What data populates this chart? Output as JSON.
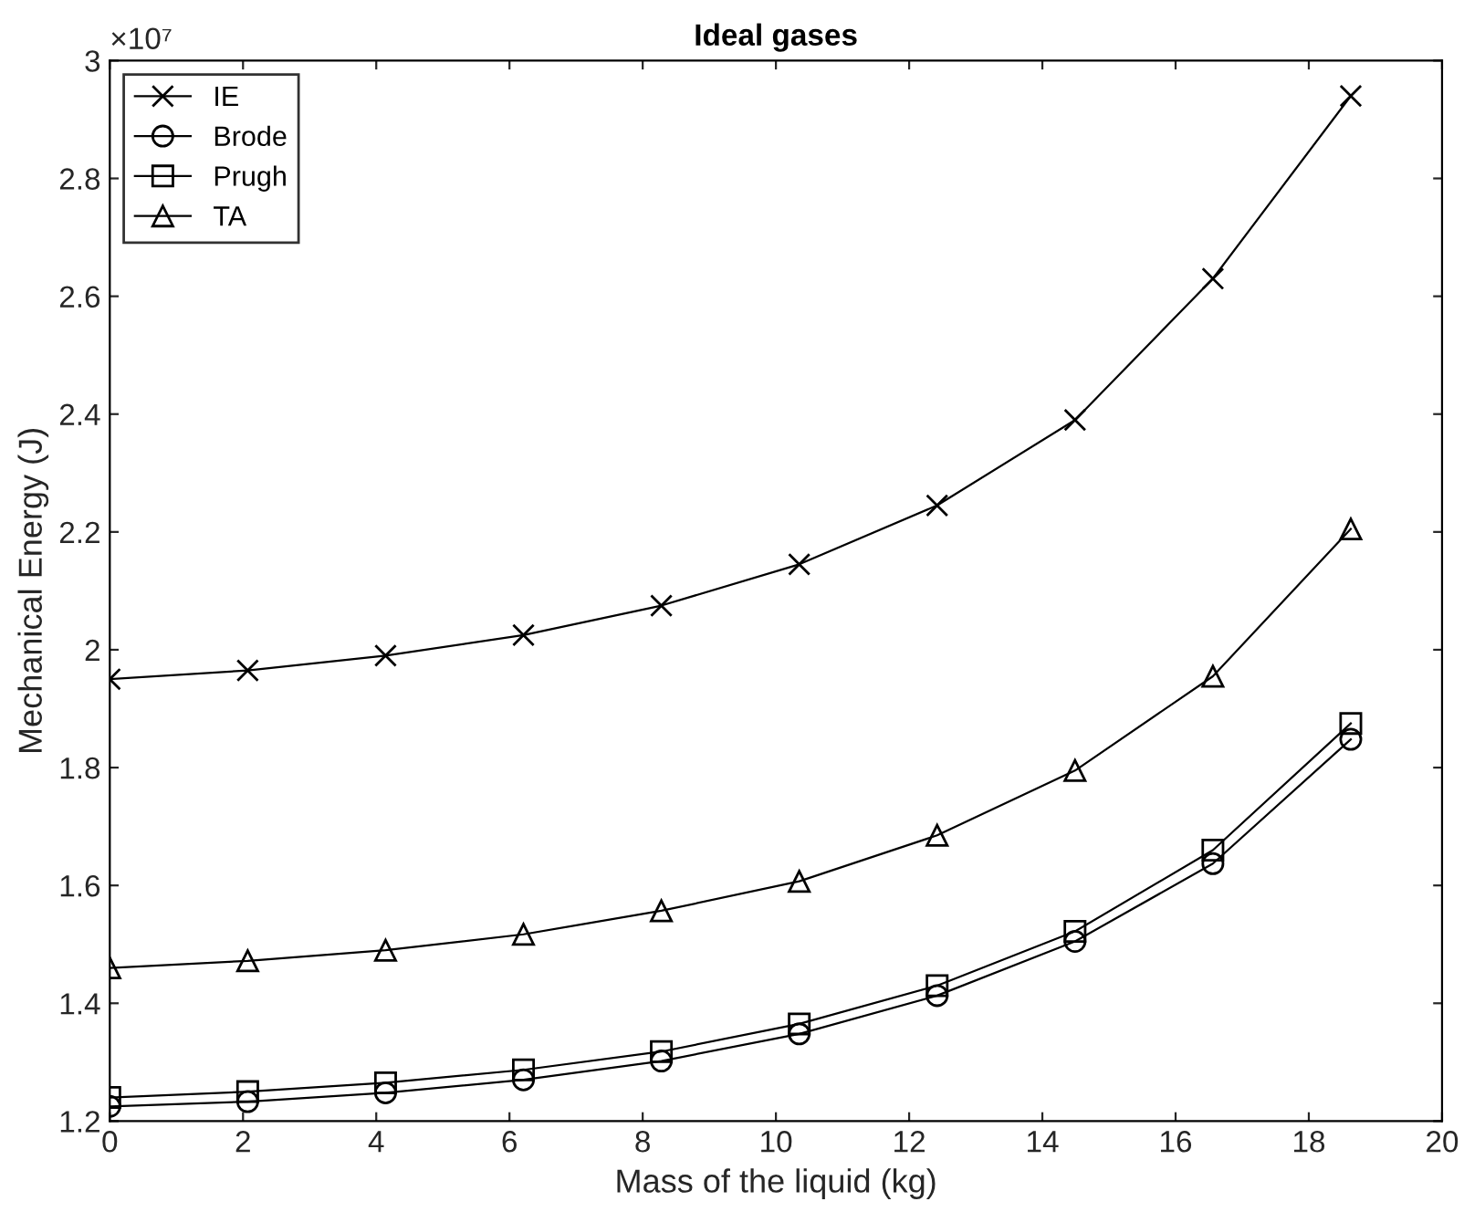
{
  "chart_data": {
    "type": "line",
    "title": "Ideal gases",
    "xlabel": "Mass of the liquid (kg)",
    "ylabel": "Mechanical Energy (J)",
    "x": [
      0,
      2.07,
      4.14,
      6.21,
      8.28,
      10.35,
      12.42,
      14.49,
      16.56,
      18.63
    ],
    "series": [
      {
        "name": "IE",
        "color": "#000000",
        "marker": "cross",
        "values": [
          1.95,
          1.965,
          1.99,
          2.025,
          2.075,
          2.145,
          2.245,
          2.39,
          2.63,
          2.94
        ]
      },
      {
        "name": "Brode",
        "color": "#000000",
        "marker": "circle",
        "values": [
          1.225,
          1.233,
          1.248,
          1.27,
          1.302,
          1.348,
          1.413,
          1.505,
          1.637,
          1.848
        ]
      },
      {
        "name": "Prugh",
        "color": "#000000",
        "marker": "square",
        "values": [
          1.24,
          1.25,
          1.265,
          1.287,
          1.318,
          1.365,
          1.43,
          1.522,
          1.66,
          1.875
        ]
      },
      {
        "name": "TA",
        "color": "#000000",
        "marker": "triangle",
        "values": [
          1.46,
          1.472,
          1.49,
          1.517,
          1.557,
          1.607,
          1.685,
          1.795,
          1.955,
          2.205
        ]
      }
    ],
    "xlim": [
      0,
      20
    ],
    "xticks": [
      0,
      2,
      4,
      6,
      8,
      10,
      12,
      14,
      16,
      18,
      20
    ],
    "ylim": [
      1.2,
      3
    ],
    "yticks": [
      1.2,
      1.4,
      1.6,
      1.8,
      2,
      2.2,
      2.4,
      2.6,
      2.8,
      3
    ],
    "annotations": [
      "×10⁷"
    ],
    "legend": "top left",
    "grid": false,
    "line_style": "solid"
  }
}
